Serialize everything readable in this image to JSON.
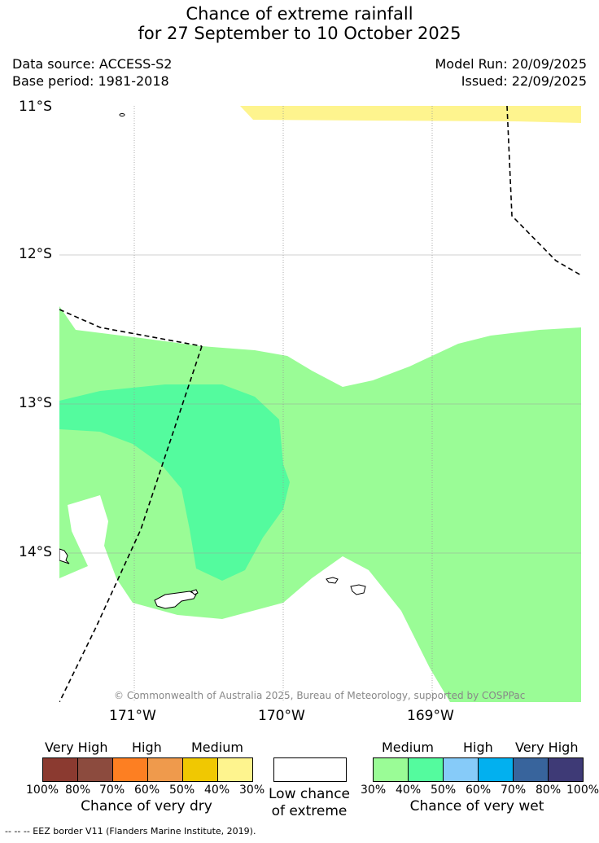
{
  "title": {
    "line1": "Chance of extreme rainfall",
    "line2": "for 27 September to 10 October 2025"
  },
  "meta": {
    "data_source": "Data source: ACCESS-S2",
    "base_period": "Base period: 1981-2018",
    "model_run": "Model Run: 20/09/2025",
    "issued": "Issued: 22/09/2025"
  },
  "map": {
    "lat_labels": [
      "11°S",
      "12°S",
      "13°S",
      "14°S"
    ],
    "lon_labels": [
      "171°W",
      "170°W",
      "169°W"
    ],
    "copyright": "© Commonwealth of Australia 2025, Bureau of Meteorology, supported by COSPPac",
    "colors": {
      "medium_wet_30_40": "#9afc96",
      "medium_wet_40_50": "#54fb9e",
      "medium_dry_30_40": "#fef48e",
      "land_outline": "#000000",
      "eez_border": "#000000",
      "gridline": "#999999"
    }
  },
  "legend": {
    "dry": {
      "headers": [
        "Very High",
        "High",
        "Medium"
      ],
      "colors": [
        "#8b3a30",
        "#8c4b3e",
        "#fd7f22",
        "#ef9a4c",
        "#f0c802",
        "#fef48e"
      ],
      "ticks": [
        "100%",
        "80%",
        "70%",
        "60%",
        "50%",
        "40%",
        "30%"
      ],
      "caption": "Chance of very dry"
    },
    "low": {
      "color": "#ffffff",
      "caption_line1": "Low chance",
      "caption_line2": "of extreme"
    },
    "wet": {
      "headers": [
        "Medium",
        "High",
        "Very High"
      ],
      "colors": [
        "#9afc96",
        "#54fb9e",
        "#86cbf9",
        "#02b0ef",
        "#38649c",
        "#3e3a76"
      ],
      "ticks": [
        "30%",
        "40%",
        "50%",
        "60%",
        "70%",
        "80%",
        "100%"
      ],
      "caption": "Chance of very wet"
    }
  },
  "footer": "-- -- -- EEZ border V11 (Flanders Marine Institute, 2019)."
}
